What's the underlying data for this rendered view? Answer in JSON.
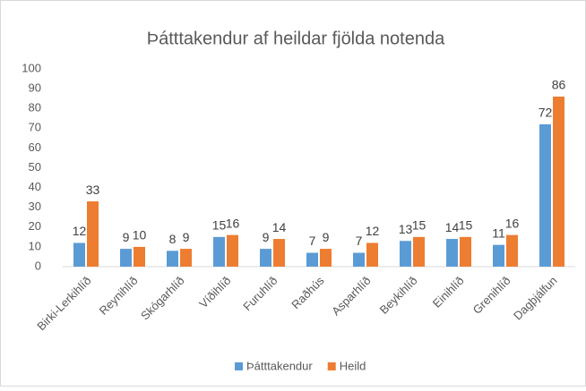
{
  "chart_data": {
    "type": "bar",
    "title": "Þátttakendur af heildar fjölda notenda",
    "categories": [
      "Birki-Lerkihlíð",
      "Reynihlíð",
      "Skógarhlíð",
      "Víðihlíð",
      "Furuhlíð",
      "Raðhús",
      "Asparhlíð",
      "Beykihlíð",
      "Einihlíð",
      "Grenihlíð",
      "Dagþjálfun"
    ],
    "series": [
      {
        "name": "Þátttakendur",
        "color": "#5b9bd5",
        "values": [
          12,
          9,
          8,
          15,
          9,
          7,
          7,
          13,
          14,
          11,
          72
        ]
      },
      {
        "name": "Heild",
        "color": "#ed7d31",
        "values": [
          33,
          10,
          9,
          16,
          14,
          9,
          12,
          15,
          15,
          16,
          86
        ]
      }
    ],
    "ylim": [
      0,
      100
    ],
    "yticks": [
      0,
      10,
      20,
      30,
      40,
      50,
      60,
      70,
      80,
      90,
      100
    ],
    "grid": false,
    "legend": "bottom"
  }
}
